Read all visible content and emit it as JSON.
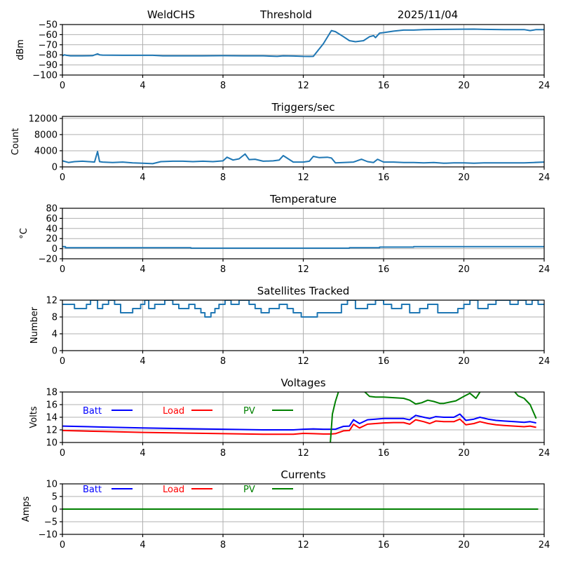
{
  "header": {
    "station": "WeldCHS",
    "mode": "Threshold",
    "date": "2025/11/04"
  },
  "colors": {
    "default_series": "#1f77b4",
    "batt": "#0000ff",
    "load": "#ff0000",
    "pv": "#008000",
    "grid": "#b0b0b0"
  },
  "chart_data": [
    {
      "id": "threshold",
      "type": "line",
      "title": "",
      "xlabel": "",
      "ylabel": "dBm",
      "xlim": [
        0,
        24
      ],
      "ylim": [
        -100,
        -50
      ],
      "xticks": [
        0,
        4,
        8,
        12,
        16,
        20,
        24
      ],
      "yticks": [
        -100,
        -90,
        -80,
        -70,
        -60,
        -50
      ],
      "ytick_labels": [
        "−100",
        "−90",
        "−80",
        "−70",
        "−60",
        "−50"
      ],
      "grid": true,
      "series": [
        {
          "name": "Threshold",
          "color": "#1f77b4",
          "x": [
            0,
            0.1,
            0.2,
            0.4,
            1.0,
            1.5,
            1.75,
            1.85,
            2.0,
            3.0,
            4.0,
            4.5,
            5.0,
            6.0,
            7.0,
            8.0,
            9.0,
            10.0,
            10.7,
            11.0,
            11.5,
            12.0,
            12.3,
            12.5,
            13.0,
            13.4,
            13.6,
            14.0,
            14.3,
            14.6,
            15.0,
            15.3,
            15.5,
            15.6,
            15.8,
            16.0,
            16.5,
            17.0,
            17.5,
            18.0,
            19.0,
            20.0,
            20.5,
            21.0,
            22.0,
            23.0,
            23.3,
            23.6,
            24.0
          ],
          "values": [
            -81,
            -80,
            -80.5,
            -81,
            -81,
            -80.8,
            -79,
            -80,
            -80.3,
            -80.5,
            -80.5,
            -80.5,
            -81,
            -81,
            -81,
            -80.8,
            -81,
            -81,
            -81.5,
            -81,
            -81.2,
            -81.5,
            -81.6,
            -81.5,
            -69,
            -56,
            -57,
            -62,
            -66,
            -67,
            -66,
            -62,
            -61,
            -63,
            -58.5,
            -58,
            -56.5,
            -55.5,
            -55.5,
            -55,
            -54.8,
            -54.6,
            -54.5,
            -54.8,
            -55,
            -55,
            -56,
            -55,
            -55
          ]
        }
      ]
    },
    {
      "id": "triggers",
      "type": "line",
      "title": "Triggers/sec",
      "xlabel": "",
      "ylabel": "Count",
      "xlim": [
        0,
        24
      ],
      "ylim": [
        0,
        12500
      ],
      "xticks": [
        0,
        4,
        8,
        12,
        16,
        20,
        24
      ],
      "yticks": [
        0,
        4000,
        8000,
        12000
      ],
      "ytick_labels": [
        "0",
        "4000",
        "8000",
        "12000"
      ],
      "grid": true,
      "series": [
        {
          "name": "Triggers/sec",
          "color": "#1f77b4",
          "x": [
            0,
            0.3,
            0.6,
            1.0,
            1.3,
            1.6,
            1.75,
            1.85,
            2.0,
            2.5,
            3.0,
            3.5,
            4.0,
            4.5,
            4.9,
            5.5,
            6.0,
            6.5,
            7.0,
            7.5,
            8.0,
            8.2,
            8.5,
            8.8,
            9.1,
            9.3,
            9.6,
            10.0,
            10.5,
            10.8,
            11.0,
            11.5,
            12.0,
            12.3,
            12.5,
            12.8,
            13.2,
            13.4,
            13.6,
            14.0,
            14.5,
            14.9,
            15.2,
            15.5,
            15.7,
            16.0,
            16.5,
            17.0,
            17.5,
            18.0,
            18.5,
            19.0,
            19.5,
            20.0,
            20.5,
            21.0,
            21.5,
            22.0,
            22.5,
            23.0,
            23.5,
            24.0
          ],
          "values": [
            1500,
            1100,
            1300,
            1400,
            1300,
            1200,
            3800,
            1300,
            1200,
            1100,
            1200,
            1000,
            900,
            800,
            1300,
            1400,
            1400,
            1300,
            1400,
            1300,
            1500,
            2400,
            1700,
            2000,
            3200,
            1800,
            1900,
            1400,
            1500,
            1700,
            2800,
            1200,
            1200,
            1400,
            2600,
            2300,
            2400,
            2200,
            1000,
            1100,
            1200,
            1900,
            1300,
            1100,
            1900,
            1200,
            1200,
            1100,
            1100,
            1000,
            1100,
            900,
            1000,
            1000,
            900,
            1000,
            1000,
            1000,
            1000,
            1000,
            1100,
            1200
          ]
        }
      ]
    },
    {
      "id": "temperature",
      "type": "line",
      "title": "Temperature",
      "xlabel": "",
      "ylabel": "°C",
      "xlim": [
        0,
        24
      ],
      "ylim": [
        -20,
        80
      ],
      "xticks": [
        0,
        4,
        8,
        12,
        16,
        20,
        24
      ],
      "yticks": [
        -20,
        0,
        20,
        40,
        60,
        80
      ],
      "ytick_labels": [
        "−20",
        "0",
        "20",
        "40",
        "60",
        "80"
      ],
      "grid": true,
      "series": [
        {
          "name": "Temperature",
          "color": "#1f77b4",
          "x": [
            0,
            0.15,
            0.15,
            6.4,
            6.4,
            14.3,
            14.3,
            15.8,
            15.8,
            17.5,
            17.5,
            24
          ],
          "values": [
            4,
            4,
            2,
            2,
            1,
            1,
            2,
            2,
            3,
            3,
            4,
            4
          ]
        }
      ]
    },
    {
      "id": "satellites",
      "type": "line",
      "title": "Satellites Tracked",
      "xlabel": "",
      "ylabel": "Number",
      "xlim": [
        0,
        24
      ],
      "ylim": [
        0,
        12
      ],
      "xticks": [
        0,
        4,
        8,
        12,
        16,
        20,
        24
      ],
      "yticks": [
        0,
        4,
        8,
        12
      ],
      "ytick_labels": [
        "0",
        "4",
        "8",
        "12"
      ],
      "grid": true,
      "step": true,
      "series": [
        {
          "name": "Satellites",
          "color": "#1f77b4",
          "x": [
            0,
            0.6,
            1.2,
            1.4,
            1.75,
            2.0,
            2.3,
            2.6,
            2.9,
            3.5,
            3.9,
            4.1,
            4.3,
            4.6,
            5.1,
            5.5,
            5.8,
            6.3,
            6.6,
            6.9,
            7.1,
            7.4,
            7.6,
            7.8,
            8.1,
            8.4,
            8.8,
            9.3,
            9.6,
            9.9,
            10.3,
            10.8,
            11.2,
            11.5,
            11.9,
            12.3,
            12.7,
            13.0,
            13.5,
            13.9,
            14.2,
            14.6,
            15.2,
            15.6,
            16.0,
            16.4,
            16.9,
            17.3,
            17.8,
            18.2,
            18.7,
            19.0,
            19.4,
            19.7,
            20.0,
            20.3,
            20.7,
            21.2,
            21.6,
            22.0,
            22.3,
            22.7,
            23.1,
            23.4,
            23.7,
            24.0
          ],
          "values": [
            11,
            10,
            11,
            12,
            10,
            11,
            12,
            11,
            9,
            10,
            11,
            12,
            10,
            11,
            12,
            11,
            10,
            11,
            10,
            9,
            8,
            9,
            10,
            11,
            12,
            11,
            12,
            11,
            10,
            9,
            10,
            11,
            10,
            9,
            8,
            8,
            9,
            9,
            9,
            11,
            12,
            10,
            11,
            12,
            11,
            10,
            11,
            9,
            10,
            11,
            9,
            9,
            9,
            10,
            11,
            12,
            10,
            11,
            12,
            12,
            11,
            12,
            11,
            12,
            11,
            11
          ]
        }
      ]
    },
    {
      "id": "voltages",
      "type": "line",
      "title": "Voltages",
      "xlabel": "",
      "ylabel": "Volts",
      "xlim": [
        0,
        24
      ],
      "ylim": [
        10,
        18
      ],
      "xticks": [
        0,
        4,
        8,
        12,
        16,
        20,
        24
      ],
      "yticks": [
        10,
        12,
        14,
        16,
        18
      ],
      "ytick_labels": [
        "10",
        "12",
        "14",
        "16",
        "18"
      ],
      "grid": true,
      "legend": {
        "placement": "top-left-inline",
        "entries": [
          {
            "label": "Batt",
            "color": "#0000ff"
          },
          {
            "label": "Load",
            "color": "#ff0000"
          },
          {
            "label": "PV",
            "color": "#008000"
          }
        ]
      },
      "series": [
        {
          "name": "Batt",
          "color": "#0000ff",
          "x": [
            0,
            2,
            4,
            6,
            8,
            10,
            11.5,
            12,
            12.5,
            13.0,
            13.4,
            13.6,
            14.0,
            14.3,
            14.5,
            14.8,
            15.2,
            15.6,
            16.0,
            16.5,
            17.0,
            17.3,
            17.6,
            18.0,
            18.3,
            18.6,
            19.0,
            19.5,
            19.8,
            20.1,
            20.5,
            20.8,
            21.2,
            21.6,
            22.0,
            22.5,
            23.0,
            23.3,
            23.6
          ],
          "values": [
            12.6,
            12.45,
            12.3,
            12.2,
            12.1,
            12.0,
            12.0,
            12.1,
            12.15,
            12.1,
            12.1,
            12.1,
            12.55,
            12.6,
            13.6,
            13.0,
            13.6,
            13.7,
            13.8,
            13.8,
            13.8,
            13.6,
            14.3,
            14.0,
            13.8,
            14.1,
            14.0,
            14.0,
            14.5,
            13.5,
            13.7,
            14.0,
            13.7,
            13.5,
            13.4,
            13.3,
            13.2,
            13.3,
            13.1
          ]
        },
        {
          "name": "Load",
          "color": "#ff0000",
          "x": [
            0,
            2,
            4,
            6,
            8,
            10,
            11.5,
            12,
            12.5,
            13.0,
            13.4,
            13.6,
            14.0,
            14.3,
            14.5,
            14.8,
            15.2,
            15.6,
            16.0,
            16.5,
            17.0,
            17.3,
            17.6,
            18.0,
            18.3,
            18.6,
            19.0,
            19.5,
            19.8,
            20.1,
            20.5,
            20.8,
            21.2,
            21.6,
            22.0,
            22.5,
            23.0,
            23.3,
            23.6
          ],
          "values": [
            11.9,
            11.75,
            11.6,
            11.5,
            11.4,
            11.3,
            11.3,
            11.45,
            11.4,
            11.35,
            11.35,
            11.4,
            11.85,
            11.9,
            12.9,
            12.3,
            12.9,
            13.0,
            13.1,
            13.15,
            13.15,
            12.9,
            13.6,
            13.3,
            13.0,
            13.4,
            13.3,
            13.3,
            13.7,
            12.8,
            13.0,
            13.3,
            13.0,
            12.8,
            12.7,
            12.6,
            12.5,
            12.6,
            12.4
          ]
        },
        {
          "name": "PV",
          "color": "#008000",
          "x": [
            13.35,
            13.45,
            13.6,
            13.8,
            14.0,
            14.5,
            15.0,
            15.3,
            15.6,
            16.0,
            16.5,
            17.0,
            17.3,
            17.6,
            17.9,
            18.2,
            18.5,
            18.8,
            19.0,
            19.3,
            19.6,
            20.0,
            20.3,
            20.6,
            20.9,
            21.2,
            22.0,
            22.4,
            22.7,
            23.0,
            23.3,
            23.6
          ],
          "values": [
            10,
            14.5,
            16.5,
            18.5,
            19.0,
            19.0,
            18.2,
            17.3,
            17.2,
            17.2,
            17.1,
            17.0,
            16.7,
            16.1,
            16.3,
            16.7,
            16.5,
            16.2,
            16.2,
            16.4,
            16.6,
            17.3,
            17.8,
            17.0,
            18.5,
            19.5,
            19.5,
            18.5,
            17.4,
            17.0,
            16.0,
            13.8
          ]
        }
      ]
    },
    {
      "id": "currents",
      "type": "line",
      "title": "Currents",
      "xlabel": "",
      "ylabel": "Amps",
      "xlim": [
        0,
        24
      ],
      "ylim": [
        -10,
        10
      ],
      "xticks": [
        0,
        4,
        8,
        12,
        16,
        20,
        24
      ],
      "yticks": [
        -10,
        -5,
        0,
        5,
        10
      ],
      "ytick_labels": [
        "−10",
        "−5",
        "0",
        "5",
        "10"
      ],
      "grid": true,
      "legend": {
        "placement": "top-left-inline",
        "entries": [
          {
            "label": "Batt",
            "color": "#0000ff"
          },
          {
            "label": "Load",
            "color": "#ff0000"
          },
          {
            "label": "PV",
            "color": "#008000"
          }
        ]
      },
      "series": [
        {
          "name": "Batt",
          "color": "#0000ff",
          "x": [
            0,
            23.7
          ],
          "values": [
            0,
            0
          ]
        },
        {
          "name": "Load",
          "color": "#ff0000",
          "x": [
            0,
            23.7
          ],
          "values": [
            0,
            0
          ]
        },
        {
          "name": "PV",
          "color": "#008000",
          "x": [
            0,
            23.7
          ],
          "values": [
            0,
            0
          ]
        }
      ]
    }
  ]
}
